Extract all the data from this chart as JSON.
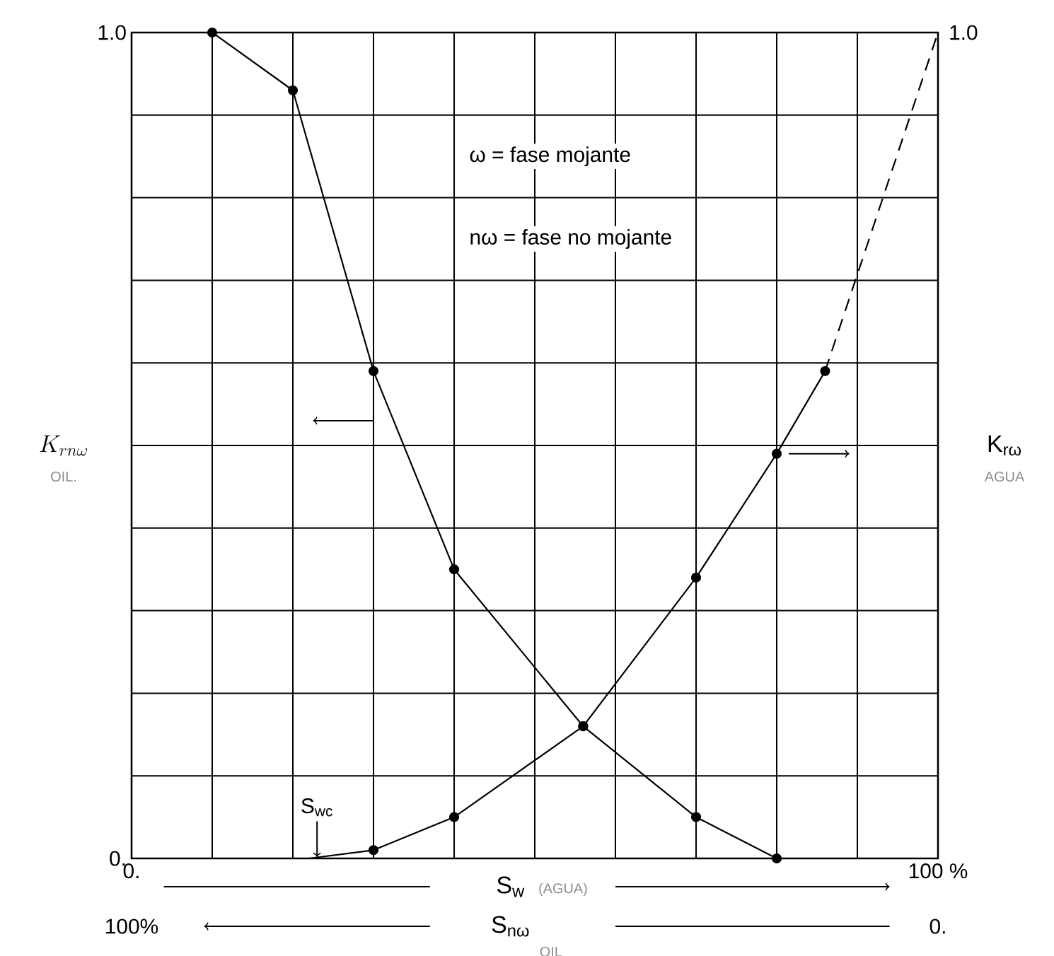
{
  "chart_data": {
    "type": "line",
    "xlabel": "S$_{w}$",
    "ylabel": "K_{rn\\omega}",
    "y2label": "K$_{rω}$",
    "x2label": "S$_{nω}$",
    "xlim": [
      0,
      100
    ],
    "xticks": [
      {
        "value": 0,
        "label": "0."
      },
      {
        "value": 10,
        "label": null
      },
      {
        "value": 20,
        "label": null
      },
      {
        "value": 30,
        "label": null
      },
      {
        "value": 40,
        "label": null
      },
      {
        "value": 50,
        "label": null
      },
      {
        "value": 60,
        "label": null
      },
      {
        "value": 70,
        "label": null
      },
      {
        "value": 80,
        "label": null
      },
      {
        "value": 90,
        "label": null
      },
      {
        "value": 100,
        "label": "100 %"
      }
    ],
    "x2lim": [
      100,
      0
    ],
    "x2ticks": [
      {
        "value": 100,
        "label": "100%"
      },
      {
        "value": 0,
        "label": "0."
      }
    ],
    "ylim": [
      0,
      1
    ],
    "yticks": [
      {
        "value": 0,
        "label": "0."
      },
      {
        "value": 0.1,
        "label": null
      },
      {
        "value": 0.2,
        "label": null
      },
      {
        "value": 0.3,
        "label": null
      },
      {
        "value": 0.4,
        "label": null
      },
      {
        "value": 0.5,
        "label": null
      },
      {
        "value": 0.6,
        "label": null
      },
      {
        "value": 0.7,
        "label": null
      },
      {
        "value": 0.8,
        "label": null
      },
      {
        "value": 0.9,
        "label": null
      },
      {
        "value": 1,
        "label": "1.0"
      }
    ],
    "grid": true,
    "series": [
      {
        "color": "#000000",
        "marker": "circle",
        "line_style": "solid",
        "x": [
          10,
          20,
          30,
          40,
          56,
          70,
          80
        ],
        "values": [
          1.0,
          0.93,
          0.59,
          0.35,
          0.16,
          0.05,
          0.0
        ]
      },
      {
        "color": "#000000",
        "marker": "circle",
        "line_style": "solid",
        "x": [
          30,
          40,
          56,
          70,
          80,
          86
        ],
        "values": [
          0.01,
          0.05,
          0.16,
          0.34,
          0.49,
          0.59
        ]
      },
      {
        "color": "#000000",
        "marker": "none",
        "line_style": "dashed",
        "x": [
          86,
          100
        ],
        "values": [
          0.59,
          1.0
        ]
      },
      {
        "color": "#000000",
        "marker": "none",
        "line_style": "solid",
        "x": [
          22,
          30
        ],
        "values": [
          0.0,
          0.01
        ]
      }
    ],
    "annotations": [
      "ω = fase mojante",
      "nω = fase no mojante",
      {
        "text": "S$_{wc}$",
        "x": 23,
        "y": 0
      },
      "OIL.",
      "AGUA",
      "(AGUA)",
      "OIL",
      "1.0"
    ]
  }
}
